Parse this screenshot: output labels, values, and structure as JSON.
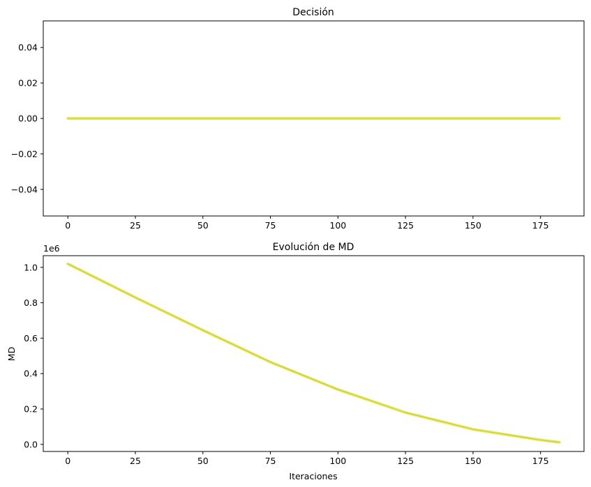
{
  "chart_data": [
    {
      "type": "line",
      "title": "Decisión",
      "xlabel": "",
      "ylabel": "",
      "xlim": [
        -9.1,
        191.1
      ],
      "ylim": [
        -0.055,
        0.055
      ],
      "xticks": [
        0,
        25,
        50,
        75,
        100,
        125,
        150,
        175
      ],
      "xtick_labels": [
        "0",
        "25",
        "50",
        "75",
        "100",
        "125",
        "150",
        "175"
      ],
      "yticks": [
        -0.04,
        -0.02,
        0.0,
        0.02,
        0.04
      ],
      "ytick_labels": [
        "−0.04",
        "−0.02",
        "0.00",
        "0.02",
        "0.04"
      ],
      "grid": false,
      "series": [
        {
          "color": "#e8e85a",
          "x": [
            0,
            182
          ],
          "y": [
            0,
            0
          ]
        }
      ]
    },
    {
      "type": "line",
      "title": "Evolución de MD",
      "xlabel": "Iteraciones",
      "ylabel": "MD",
      "offset_label": "1e6",
      "xlim": [
        -9.1,
        191.1
      ],
      "ylim": [
        -0.04,
        1.066
      ],
      "xticks": [
        0,
        25,
        50,
        75,
        100,
        125,
        150,
        175
      ],
      "xtick_labels": [
        "0",
        "25",
        "50",
        "75",
        "100",
        "125",
        "150",
        "175"
      ],
      "yticks": [
        0.0,
        0.2,
        0.4,
        0.6,
        0.8,
        1.0
      ],
      "ytick_labels": [
        "0.0",
        "0.2",
        "0.4",
        "0.6",
        "0.8",
        "1.0"
      ],
      "grid": false,
      "series": [
        {
          "color": "#e8e85a",
          "x": [
            0,
            25,
            50,
            75,
            100,
            125,
            150,
            175,
            182
          ],
          "y": [
            1.02,
            0.83,
            0.645,
            0.465,
            0.31,
            0.18,
            0.085,
            0.025,
            0.012
          ]
        }
      ]
    }
  ]
}
